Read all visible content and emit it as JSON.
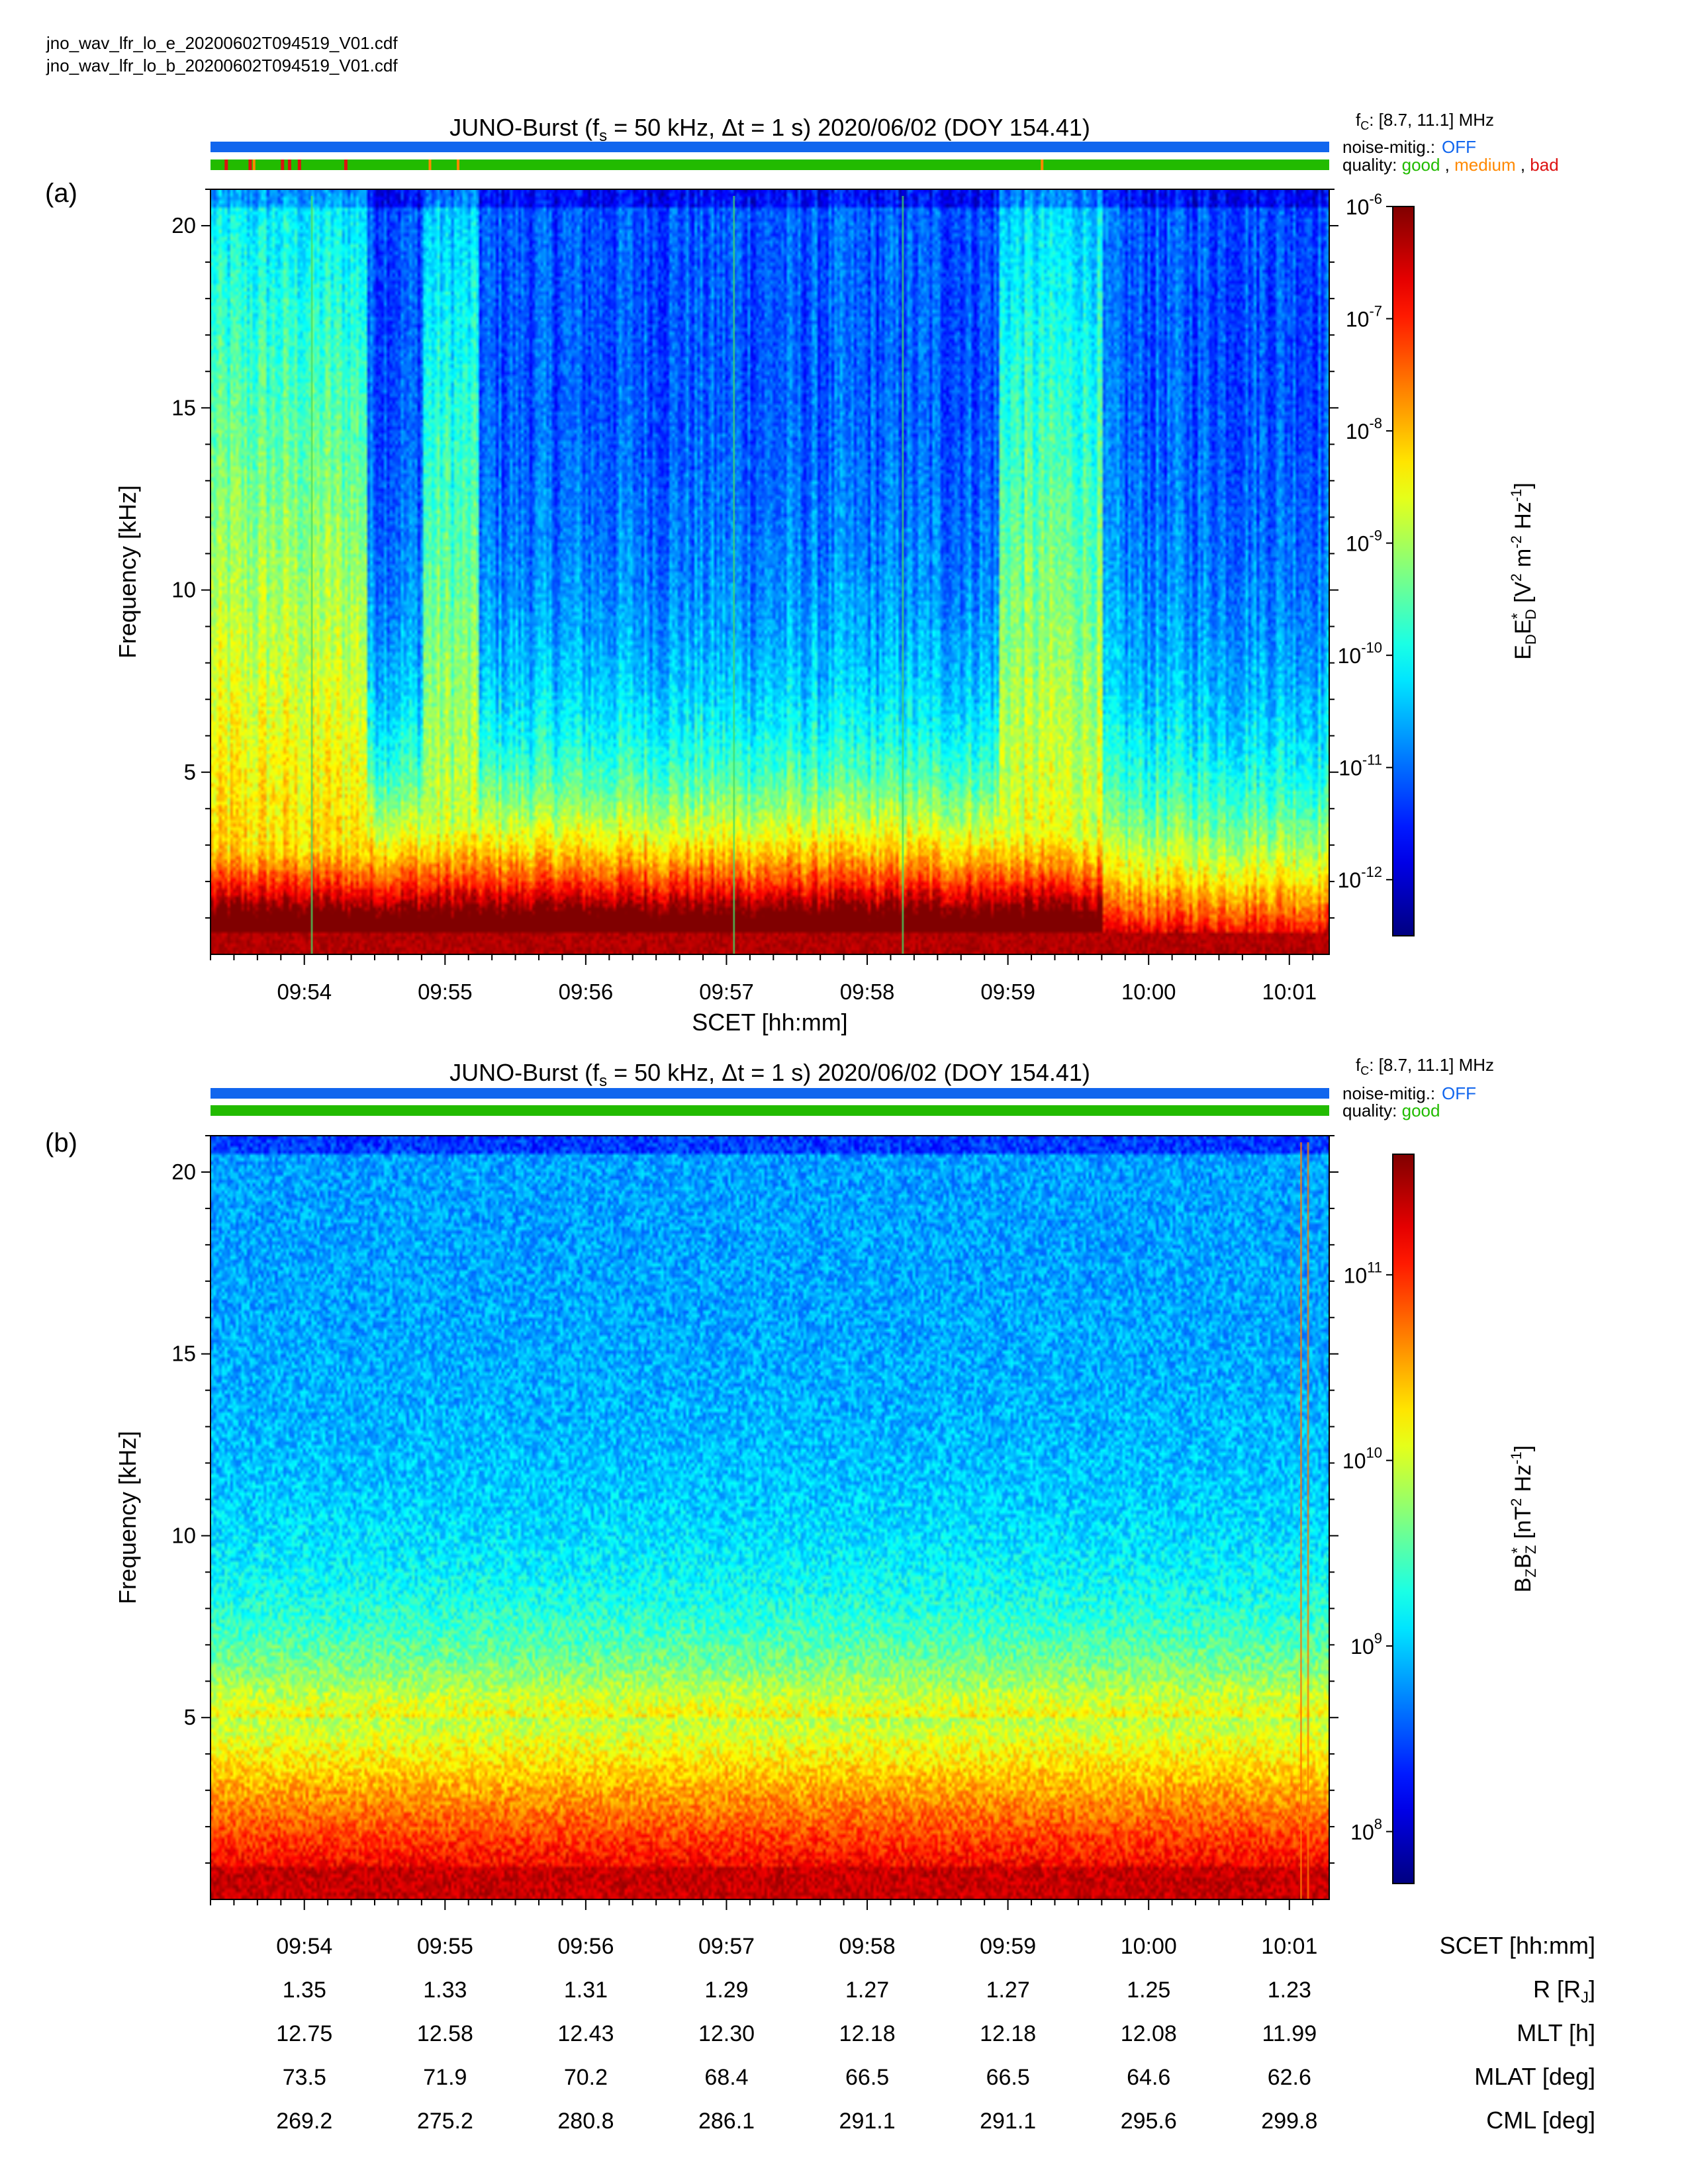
{
  "files": [
    "jno_wav_lfr_lo_e_20200602T094519_V01.cdf",
    "jno_wav_lfr_lo_b_20200602T094519_V01.cdf"
  ],
  "colors": {
    "noise_bar": "#1166ee",
    "quality_good": "#22bb00",
    "quality_medium": "#ff8800",
    "quality_bad": "#dd1111",
    "noise_off_text": "#1166ee"
  },
  "colormap_name": "jet",
  "chart_data": [
    {
      "panel_label": "(a)",
      "type": "heatmap",
      "title_parts": {
        "prefix": "JUNO-Burst (f",
        "sub": "s",
        "middle": " = 50 kHz, Δt = 1 s)  2020/06/02 (DOY 154.41)"
      },
      "fc_label": "f",
      "fc_sub": "C",
      "fc_value": ": [8.7, 11.1] MHz",
      "noise_label": "noise-mitig.:",
      "noise_value": "OFF",
      "quality_label": "quality:",
      "quality_good": "good",
      "quality_medium": "medium",
      "quality_bad": "bad",
      "quality_sep": ",",
      "bad_ticks_min": [
        0.1,
        0.27,
        0.5,
        0.55,
        0.62,
        0.95
      ],
      "medium_ticks_min": [
        0.3,
        1.55,
        1.75,
        5.9
      ],
      "ylabel": "Frequency [kHz]",
      "xlabel": "SCET [hh:mm]",
      "ylim": [
        0,
        21
      ],
      "yticks": [
        "5",
        "10",
        "15",
        "20"
      ],
      "ytick_values": [
        5,
        10,
        15,
        20
      ],
      "xlim_min": [
        0,
        7.95
      ],
      "xticks": [
        "09:54",
        "09:55",
        "09:56",
        "09:57",
        "09:58",
        "09:59",
        "10:00",
        "10:01"
      ],
      "xtick_offsets_min": [
        0.667,
        1.667,
        2.667,
        3.667,
        4.667,
        5.667,
        6.667,
        7.667
      ],
      "colorbar_label": "E_D E_D* [V^2 m^-2 Hz^-1]",
      "cbar_parts": [
        "E",
        "D",
        "E",
        "*",
        "D",
        "[V",
        "2",
        " m",
        "-2",
        " Hz",
        "-1",
        "]"
      ],
      "colorbar_ticks": [
        "10-6",
        "10-7",
        "10-8",
        "10-9",
        "10-10",
        "10-11",
        "10-12"
      ],
      "colorbar_exponents": [
        -6,
        -7,
        -8,
        -9,
        -10,
        -11,
        -12
      ],
      "colorbar_range_exp": [
        -12.5,
        -6
      ],
      "features": {
        "bursts_min": [
          [
            0.0,
            1.1,
            0.95
          ],
          [
            1.5,
            1.9,
            0.8
          ],
          [
            5.6,
            6.35,
            0.85
          ]
        ],
        "quiet_after_min": 6.35,
        "low_freq_band_khz": 2.5,
        "spike_lines_min": [
          3.72,
          4.92,
          0.72
        ]
      }
    },
    {
      "panel_label": "(b)",
      "type": "heatmap",
      "title_parts": {
        "prefix": "JUNO-Burst (f",
        "sub": "s",
        "middle": " = 50 kHz, Δt = 1 s)  2020/06/02 (DOY 154.41)"
      },
      "fc_label": "f",
      "fc_sub": "C",
      "fc_value": ": [8.7, 11.1] MHz",
      "noise_label": "noise-mitig.:",
      "noise_value": "OFF",
      "quality_label": "quality:",
      "quality_good": "good",
      "ylabel": "Frequency [kHz]",
      "ylim": [
        0,
        21
      ],
      "yticks": [
        "5",
        "10",
        "15",
        "20"
      ],
      "ytick_values": [
        5,
        10,
        15,
        20
      ],
      "xlim_min": [
        0,
        7.95
      ],
      "colorbar_label": "B_Z B_Z* [nT^2 Hz^-1]",
      "cbar_parts": [
        "B",
        "Z",
        "B",
        "*",
        "Z",
        "[nT",
        "2",
        " Hz",
        "-1",
        "]"
      ],
      "colorbar_ticks": [
        "1011",
        "1010",
        "109",
        "108"
      ],
      "colorbar_exponents": [
        11,
        10,
        9,
        8
      ],
      "colorbar_range_exp": [
        7.72,
        11.65
      ],
      "features": {
        "background_level": 0.2,
        "low_freq_band_khz": 5,
        "spike_lines_min": [
          7.75,
          7.8
        ]
      }
    }
  ],
  "ephemeris": {
    "rows": [
      {
        "label": "SCET [hh:mm]",
        "values": [
          "09:54",
          "09:55",
          "09:56",
          "09:57",
          "09:58",
          "09:59",
          "10:00",
          "10:01"
        ]
      },
      {
        "label": "R [RJ]",
        "label_main": "R [R",
        "label_sub": "J",
        "label_end": "]",
        "values": [
          "1.35",
          "1.33",
          "1.31",
          "1.29",
          "1.27",
          "1.27",
          "1.25",
          "1.23"
        ]
      },
      {
        "label": "MLT [h]",
        "values": [
          "12.75",
          "12.58",
          "12.43",
          "12.30",
          "12.18",
          "12.18",
          "12.08",
          "11.99"
        ]
      },
      {
        "label": "MLAT [deg]",
        "values": [
          "73.5",
          "71.9",
          "70.2",
          "68.4",
          "66.5",
          "66.5",
          "64.6",
          "62.6"
        ]
      },
      {
        "label": "CML [deg]",
        "values": [
          "269.2",
          "275.2",
          "280.8",
          "286.1",
          "291.1",
          "291.1",
          "295.6",
          "299.8"
        ]
      }
    ]
  }
}
